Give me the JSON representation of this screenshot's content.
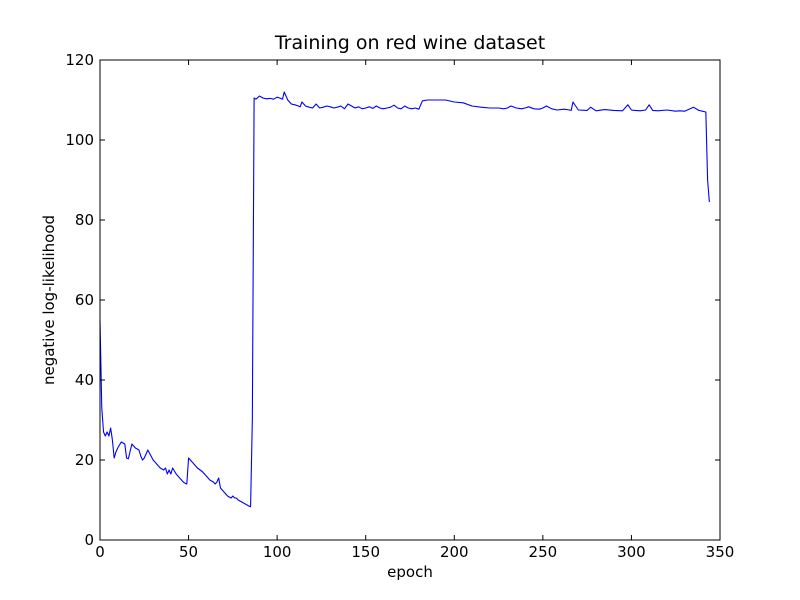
{
  "chart_data": {
    "type": "line",
    "title": "Training on red wine dataset",
    "xlabel": "epoch",
    "ylabel": "negative log-likelihood",
    "xlim": [
      0,
      350
    ],
    "ylim": [
      0,
      120
    ],
    "xticks": [
      0,
      50,
      100,
      150,
      200,
      250,
      300,
      350
    ],
    "yticks": [
      0,
      20,
      40,
      60,
      80,
      100,
      120
    ],
    "grid": false,
    "legend": "none",
    "colors": {
      "line": "#0000ff",
      "axes": "#000000",
      "background": "#ffffff"
    },
    "series": [
      {
        "x": [
          0,
          1,
          2,
          3,
          4,
          5,
          6,
          7,
          8,
          9,
          10,
          12,
          14,
          15,
          16,
          18,
          20,
          22,
          23,
          24,
          25,
          27,
          30,
          32,
          34,
          36,
          37,
          38,
          39,
          40,
          41,
          43,
          45,
          47,
          48,
          49,
          50,
          52,
          55,
          58,
          60,
          62,
          64,
          65,
          66,
          67,
          68,
          70,
          72,
          74,
          75,
          76,
          77,
          78,
          80,
          82,
          84,
          85,
          86,
          87,
          88,
          89,
          90,
          92,
          94,
          96,
          98,
          100,
          102,
          103,
          104,
          106,
          108,
          110,
          112,
          113,
          114,
          116,
          118,
          120,
          122,
          124,
          126,
          128,
          130,
          132,
          134,
          136,
          138,
          140,
          142,
          144,
          146,
          148,
          150,
          152,
          154,
          156,
          158,
          160,
          162,
          164,
          166,
          168,
          170,
          172,
          174,
          176,
          178,
          180,
          182,
          185,
          190,
          195,
          200,
          205,
          210,
          215,
          220,
          225,
          228,
          230,
          232,
          235,
          238,
          240,
          242,
          245,
          248,
          250,
          252,
          255,
          258,
          262,
          265,
          266,
          267,
          270,
          275,
          277,
          280,
          285,
          290,
          295,
          298,
          300,
          302,
          305,
          308,
          310,
          312,
          315,
          320,
          325,
          327,
          330,
          335,
          338,
          340,
          342,
          343,
          344
        ],
        "values": [
          55,
          33,
          27,
          26,
          27,
          26,
          28,
          25,
          20.5,
          22,
          23,
          24.5,
          24,
          20.5,
          20.3,
          24,
          23,
          22.5,
          21,
          20,
          20.5,
          22.5,
          20,
          19,
          18,
          17.5,
          18,
          16.5,
          17.5,
          16.5,
          18,
          16.5,
          15.5,
          14.5,
          14.2,
          14,
          20.5,
          19.5,
          18,
          17,
          16,
          15,
          14.5,
          14,
          14.5,
          15.5,
          13,
          12,
          11,
          10.5,
          11,
          10.5,
          10.5,
          10,
          9.5,
          9,
          8.5,
          8.3,
          30,
          110.5,
          110.2,
          110.6,
          111,
          110.5,
          110.3,
          110.4,
          110.2,
          110.7,
          110.4,
          110.2,
          112,
          110,
          109,
          108.8,
          108.5,
          108.3,
          109.5,
          108.5,
          108.2,
          108,
          109,
          108,
          108.2,
          108.5,
          108.3,
          108,
          108.2,
          108.5,
          107.8,
          109,
          108.5,
          108,
          108.3,
          107.8,
          108,
          108.3,
          107.9,
          108.5,
          108,
          107.8,
          108,
          108.2,
          108.7,
          108,
          107.8,
          108.5,
          108,
          107.8,
          108,
          107.7,
          109.8,
          110,
          110,
          110,
          109.5,
          109.3,
          108.5,
          108.2,
          108,
          108,
          107.8,
          108,
          108.5,
          108,
          107.8,
          108,
          108.3,
          107.8,
          107.7,
          108,
          108.5,
          107.8,
          107.5,
          107.7,
          107.5,
          107.4,
          109.5,
          107.5,
          107.4,
          108.2,
          107.3,
          107.6,
          107.4,
          107.3,
          108.8,
          107.5,
          107.4,
          107.3,
          107.5,
          108.8,
          107.4,
          107.3,
          107.5,
          107.2,
          107.3,
          107.2,
          108.2,
          107.4,
          107.2,
          107,
          90,
          84.5
        ]
      }
    ]
  }
}
